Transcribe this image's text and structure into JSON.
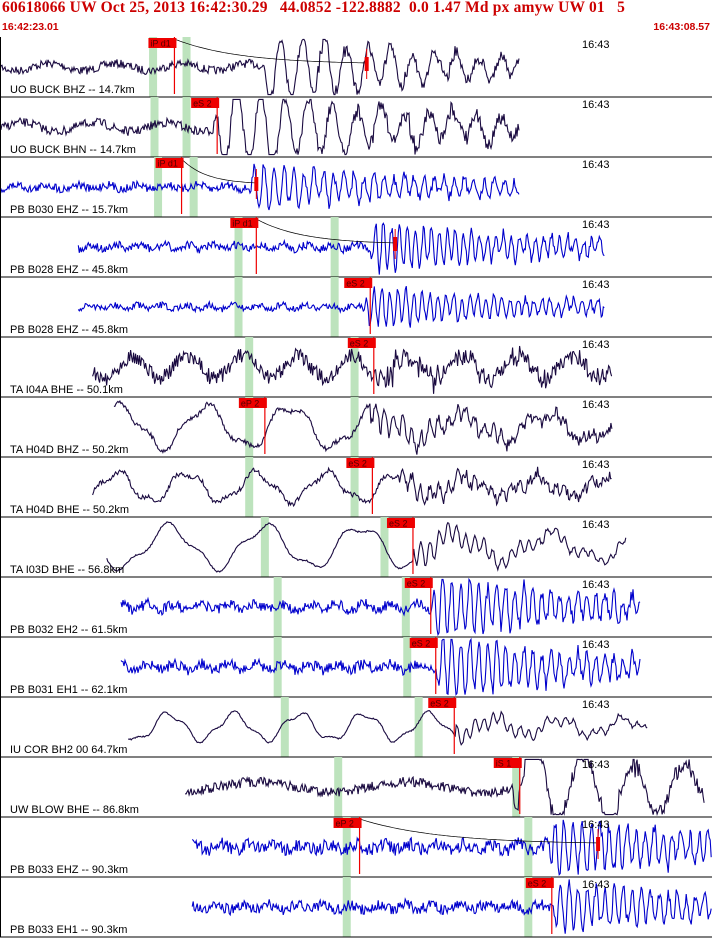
{
  "header": {
    "title": "60618066 UW Oct 25, 2013 16:42:30.29   44.0852 -122.8882  0.0 1.47 Md px amyw UW 01   5",
    "start_time": "16:42:23.01",
    "end_time": "16:43:08.57"
  },
  "colors": {
    "title": "#cc0000",
    "pick_box": "#ee0000",
    "pick_text": "#550000",
    "guide_band": "#bde3bd",
    "trace_blue": "#0000cc",
    "trace_dark": "#1a0a40",
    "separator": "#000000"
  },
  "traces": [
    {
      "label": "UO BUCK BHZ -- 14.7km",
      "time_label": "16:43",
      "color": "dark",
      "start": 0.0,
      "end": 0.73,
      "amp": 14,
      "noise": 0.3,
      "period": 22,
      "wave": "event",
      "ev": 0.37,
      "pick": {
        "text": "iP d1",
        "pos": 0.245
      },
      "green": [
        0.215,
        0.262
      ],
      "spike": 0.515,
      "marker": 0.515,
      "decay": true
    },
    {
      "label": "UO BUCK BHN -- 14.7km",
      "time_label": "16:43",
      "color": "dark",
      "start": 0.0,
      "end": 0.73,
      "amp": 18,
      "noise": 0.25,
      "period": 24,
      "wave": "event",
      "ev": 0.3,
      "pick": {
        "text": "eS 2",
        "pos": 0.305
      },
      "green": [
        0.217,
        0.262
      ]
    },
    {
      "label": "PB B030 EHZ -- 15.7km",
      "time_label": "16:43",
      "color": "blue",
      "start": 0.0,
      "end": 0.73,
      "amp": 9,
      "noise": 0.45,
      "period": 10,
      "wave": "event",
      "ev": 0.35,
      "pick": {
        "text": "iP d1",
        "pos": 0.255
      },
      "green": [
        0.222,
        0.272
      ],
      "spike": 0.36,
      "marker": 0.36,
      "decay": true
    },
    {
      "label": "PB B028 EHZ -- 45.8km",
      "time_label": "16:43",
      "color": "blue",
      "start": 0.11,
      "end": 0.85,
      "amp": 10,
      "noise": 0.4,
      "period": 8,
      "wave": "event",
      "ev": 0.52,
      "pick": {
        "text": "iP d1",
        "pos": 0.36
      },
      "green": [
        0.335,
        0.47
      ],
      "spike": 0.555,
      "marker": 0.555,
      "decay": true
    },
    {
      "label": "PB B028 EHZ -- 45.8km",
      "time_label": "16:43",
      "color": "blue",
      "start": 0.11,
      "end": 0.85,
      "amp": 8,
      "noise": 0.4,
      "period": 8,
      "wave": "event",
      "ev": 0.51,
      "pick": {
        "text": "eS 2",
        "pos": 0.52
      },
      "green": [
        0.335,
        0.47
      ]
    },
    {
      "label": "TA I04A BHE -- 50.1km",
      "time_label": "16:43",
      "color": "dark",
      "start": 0.13,
      "end": 0.86,
      "amp": 14,
      "noise": 0.55,
      "period": 55,
      "wave": "noisy",
      "ev": 0.53,
      "pick": {
        "text": "eS 2",
        "pos": 0.525
      },
      "green": [
        0.35,
        0.498
      ]
    },
    {
      "label": "TA H04D BHZ -- 50.2km",
      "time_label": "16:43",
      "color": "dark",
      "start": 0.16,
      "end": 0.86,
      "amp": 20,
      "noise": 0.25,
      "period": 85,
      "wave": "long",
      "ev": 0.52,
      "pick": {
        "text": "eP 2",
        "pos": 0.372
      },
      "green": [
        0.35,
        0.498
      ]
    },
    {
      "label": "TA H04D BHE -- 50.2km",
      "time_label": "16:43",
      "color": "dark",
      "start": 0.13,
      "end": 0.86,
      "amp": 14,
      "noise": 0.35,
      "period": 70,
      "wave": "long",
      "ev": 0.56,
      "pick": {
        "text": "eS 2",
        "pos": 0.523
      },
      "green": [
        0.35,
        0.498
      ]
    },
    {
      "label": "TA I03D BHE -- 56.8km",
      "time_label": "16:43",
      "color": "dark",
      "start": 0.15,
      "end": 0.88,
      "amp": 20,
      "noise": 0.08,
      "period": 95,
      "wave": "long",
      "ev": 0.58,
      "pick": {
        "text": "eS 2",
        "pos": 0.58
      },
      "green": [
        0.372,
        0.54
      ]
    },
    {
      "label": "PB B032 EH2 -- 61.5km",
      "time_label": "16:43",
      "color": "blue",
      "start": 0.17,
      "end": 0.9,
      "amp": 12,
      "noise": 0.45,
      "period": 9,
      "wave": "event",
      "ev": 0.605,
      "pick": {
        "text": "eS 2",
        "pos": 0.605
      },
      "green": [
        0.39,
        0.57
      ]
    },
    {
      "label": "PB B031 EH1 -- 62.1km",
      "time_label": "16:43",
      "color": "blue",
      "start": 0.17,
      "end": 0.9,
      "amp": 12,
      "noise": 0.45,
      "period": 9,
      "wave": "event",
      "ev": 0.612,
      "pick": {
        "text": "eS 2",
        "pos": 0.612
      },
      "green": [
        0.39,
        0.572
      ]
    },
    {
      "label": "IU COR BH2 00 64.7km",
      "time_label": "16:43",
      "color": "dark",
      "start": 0.18,
      "end": 0.91,
      "amp": 13,
      "noise": 0.1,
      "period": 65,
      "wave": "long",
      "ev": 0.64,
      "pick": {
        "text": "eS 2",
        "pos": 0.638
      },
      "green": [
        0.4,
        0.588
      ]
    },
    {
      "label": "UW BLOW BHE -- 86.8km",
      "time_label": "16:43",
      "color": "dark",
      "start": 0.26,
      "end": 0.99,
      "amp": 20,
      "noise": 0.25,
      "period": 50,
      "wave": "event",
      "ev": 0.72,
      "pick": {
        "text": "iS 1",
        "pos": 0.73
      },
      "green": [
        0.475,
        0.725
      ]
    },
    {
      "label": "PB B033 EHZ -- 90.3km",
      "time_label": "16:43",
      "color": "blue",
      "start": 0.27,
      "end": 1.0,
      "amp": 12,
      "noise": 0.55,
      "period": 9,
      "wave": "event",
      "ev": 0.77,
      "pick": {
        "text": "eP 2",
        "pos": 0.505
      },
      "green": [
        0.487,
        0.742
      ],
      "spike": 0.84,
      "marker": 0.84,
      "decay": true
    },
    {
      "label": "PB B033 EH1 -- 90.3km",
      "time_label": "16:43",
      "color": "blue",
      "start": 0.27,
      "end": 1.0,
      "amp": 10,
      "noise": 0.55,
      "period": 9,
      "wave": "event",
      "ev": 0.775,
      "pick": {
        "text": "eS 2",
        "pos": 0.775
      },
      "green": [
        0.487,
        0.742
      ]
    }
  ]
}
